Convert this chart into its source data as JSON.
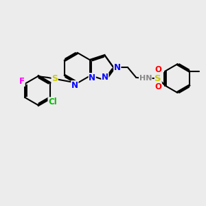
{
  "bg_color": "#ececec",
  "bond_color": "#000000",
  "N_color": "#0000ff",
  "S_color": "#cccc00",
  "O_color": "#ff0000",
  "F_color": "#ff00ff",
  "Cl_color": "#00bb00",
  "NH_color": "#888888",
  "bond_width": 1.5,
  "dbo": 0.05,
  "figsize": [
    3.0,
    3.0
  ],
  "dpi": 100,
  "xlim": [
    -4.5,
    4.5
  ],
  "ylim": [
    -2.8,
    2.2
  ]
}
